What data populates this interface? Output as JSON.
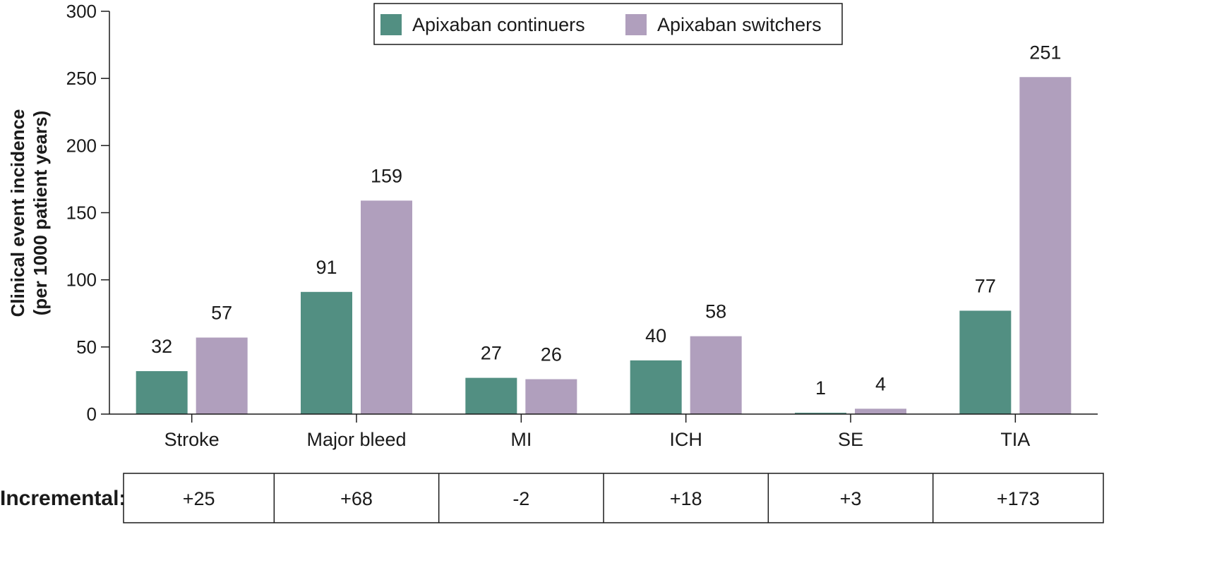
{
  "chart_data": {
    "type": "bar",
    "ylabel": [
      "Clinical event incidence",
      "(per 1000 patient years)"
    ],
    "ylim": [
      0,
      300
    ],
    "yticks": [
      0,
      50,
      100,
      150,
      200,
      250,
      300
    ],
    "categories": [
      "Stroke",
      "Major bleed",
      "MI",
      "ICH",
      "SE",
      "TIA"
    ],
    "series": [
      {
        "name": "Apixaban continuers",
        "color": "#528f82",
        "values": [
          32,
          91,
          27,
          40,
          1,
          77
        ]
      },
      {
        "name": "Apixaban switchers",
        "color": "#b09fbd",
        "values": [
          57,
          159,
          26,
          58,
          4,
          251
        ]
      }
    ],
    "legend_position": "top-center",
    "grid": false,
    "incremental": {
      "title": "Incremental:",
      "values": [
        "+25",
        "+68",
        "-2",
        "+18",
        "+3",
        "+173"
      ]
    }
  }
}
